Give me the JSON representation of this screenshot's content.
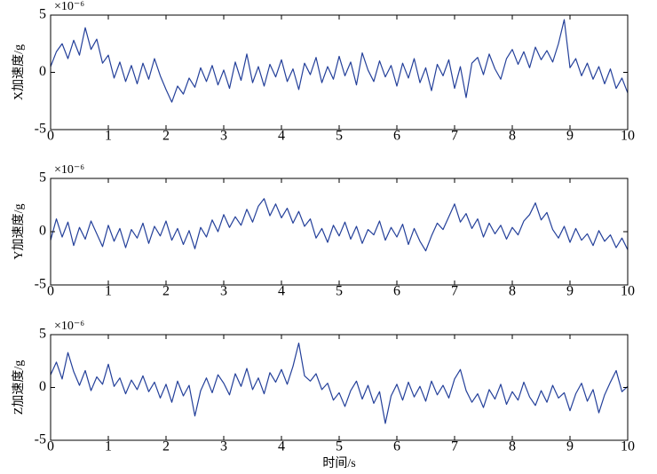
{
  "chart_data": [
    {
      "type": "line",
      "ylabel": "X加速度/g",
      "multiplier": "×10⁻⁶",
      "color": "#24409a",
      "x": [
        0,
        0.1,
        0.2,
        0.3,
        0.4,
        0.5,
        0.6,
        0.7,
        0.8,
        0.9,
        1,
        1.1,
        1.2,
        1.3,
        1.4,
        1.5,
        1.6,
        1.7,
        1.8,
        1.9,
        2,
        2.1,
        2.2,
        2.3,
        2.4,
        2.5,
        2.6,
        2.7,
        2.8,
        2.9,
        3,
        3.1,
        3.2,
        3.3,
        3.4,
        3.5,
        3.6,
        3.7,
        3.8,
        3.9,
        4,
        4.1,
        4.2,
        4.3,
        4.4,
        4.5,
        4.6,
        4.7,
        4.8,
        4.9,
        5,
        5.1,
        5.2,
        5.3,
        5.4,
        5.5,
        5.6,
        5.7,
        5.8,
        5.9,
        6,
        6.1,
        6.2,
        6.3,
        6.4,
        6.5,
        6.6,
        6.7,
        6.8,
        6.9,
        7,
        7.1,
        7.2,
        7.3,
        7.4,
        7.5,
        7.6,
        7.7,
        7.8,
        7.9,
        8,
        8.1,
        8.2,
        8.3,
        8.4,
        8.5,
        8.6,
        8.7,
        8.8,
        8.9,
        9,
        9.1,
        9.2,
        9.3,
        9.4,
        9.5,
        9.6,
        9.7,
        9.8,
        9.9,
        10
      ],
      "values": [
        0.5,
        1.8,
        2.5,
        1.2,
        2.8,
        1.5,
        3.9,
        2.0,
        2.9,
        0.8,
        1.5,
        -0.5,
        0.9,
        -0.8,
        0.6,
        -1.0,
        0.8,
        -0.6,
        1.2,
        -0.3,
        -1.5,
        -2.6,
        -1.2,
        -1.9,
        -0.5,
        -1.3,
        0.4,
        -0.8,
        0.6,
        -1.1,
        0.2,
        -1.4,
        0.9,
        -0.7,
        1.6,
        -0.9,
        0.5,
        -1.2,
        0.7,
        -0.4,
        1.1,
        -0.8,
        0.3,
        -1.5,
        0.8,
        -0.2,
        1.3,
        -0.9,
        0.5,
        -0.6,
        1.4,
        -0.3,
        0.9,
        -1.1,
        1.7,
        0.2,
        -0.8,
        1.0,
        -0.4,
        0.6,
        -1.2,
        0.8,
        -0.5,
        1.2,
        -0.9,
        0.4,
        -1.6,
        0.7,
        -0.3,
        1.1,
        -1.4,
        0.5,
        -2.2,
        0.8,
        1.3,
        -0.2,
        1.6,
        0.3,
        -0.6,
        1.2,
        2.0,
        0.7,
        1.8,
        0.4,
        2.2,
        1.1,
        1.9,
        0.9,
        2.5,
        4.6,
        0.4,
        1.2,
        -0.3,
        0.8,
        -0.6,
        0.5,
        -1.0,
        0.3,
        -1.4,
        -0.5,
        -1.8
      ],
      "xlim": [
        0,
        10
      ],
      "xticks": [
        0,
        1,
        2,
        3,
        4,
        5,
        6,
        7,
        8,
        9,
        10
      ],
      "ylim": [
        -5,
        5
      ],
      "yticks": [
        -5,
        0,
        5
      ]
    },
    {
      "type": "line",
      "ylabel": "Y加速度/g",
      "multiplier": "×10⁻⁶",
      "color": "#24409a",
      "x": [
        0,
        0.1,
        0.2,
        0.3,
        0.4,
        0.5,
        0.6,
        0.7,
        0.8,
        0.9,
        1,
        1.1,
        1.2,
        1.3,
        1.4,
        1.5,
        1.6,
        1.7,
        1.8,
        1.9,
        2,
        2.1,
        2.2,
        2.3,
        2.4,
        2.5,
        2.6,
        2.7,
        2.8,
        2.9,
        3,
        3.1,
        3.2,
        3.3,
        3.4,
        3.5,
        3.6,
        3.7,
        3.8,
        3.9,
        4,
        4.1,
        4.2,
        4.3,
        4.4,
        4.5,
        4.6,
        4.7,
        4.8,
        4.9,
        5,
        5.1,
        5.2,
        5.3,
        5.4,
        5.5,
        5.6,
        5.7,
        5.8,
        5.9,
        6,
        6.1,
        6.2,
        6.3,
        6.4,
        6.5,
        6.6,
        6.7,
        6.8,
        6.9,
        7,
        7.1,
        7.2,
        7.3,
        7.4,
        7.5,
        7.6,
        7.7,
        7.8,
        7.9,
        8,
        8.1,
        8.2,
        8.3,
        8.4,
        8.5,
        8.6,
        8.7,
        8.8,
        8.9,
        9,
        9.1,
        9.2,
        9.3,
        9.4,
        9.5,
        9.6,
        9.7,
        9.8,
        9.9,
        10
      ],
      "values": [
        -0.8,
        1.2,
        -0.5,
        0.9,
        -1.3,
        0.4,
        -0.7,
        1.0,
        -0.2,
        -1.4,
        0.6,
        -0.9,
        0.3,
        -1.5,
        0.2,
        -0.6,
        0.8,
        -1.1,
        0.5,
        -0.4,
        1.0,
        -0.8,
        0.3,
        -1.2,
        0.1,
        -1.6,
        0.4,
        -0.5,
        1.1,
        0.0,
        1.6,
        0.4,
        1.4,
        0.6,
        2.1,
        0.9,
        2.4,
        3.1,
        1.5,
        2.6,
        1.3,
        2.2,
        0.8,
        1.9,
        0.5,
        1.2,
        -0.6,
        0.3,
        -1.0,
        0.6,
        -0.4,
        0.9,
        -0.7,
        0.5,
        -1.1,
        0.2,
        -0.3,
        1.0,
        -0.8,
        0.4,
        -0.5,
        0.7,
        -1.2,
        0.3,
        -0.9,
        -1.8,
        -0.4,
        0.8,
        0.2,
        1.4,
        2.6,
        0.9,
        1.7,
        0.3,
        1.2,
        -0.5,
        0.8,
        -0.2,
        0.6,
        -0.7,
        0.4,
        -0.3,
        1.0,
        1.6,
        2.7,
        1.1,
        1.8,
        0.2,
        -0.6,
        0.5,
        -1.0,
        0.3,
        -0.8,
        -0.2,
        -1.3,
        0.1,
        -0.9,
        -0.3,
        -1.5,
        -0.6,
        -1.7
      ],
      "xlim": [
        0,
        10
      ],
      "xticks": [
        0,
        1,
        2,
        3,
        4,
        5,
        6,
        7,
        8,
        9,
        10
      ],
      "ylim": [
        -5,
        5
      ],
      "yticks": [
        -5,
        0,
        5
      ]
    },
    {
      "type": "line",
      "ylabel": "Z加速度/g",
      "multiplier": "×10⁻⁶",
      "xlabel": "时间/s",
      "color": "#24409a",
      "x": [
        0,
        0.1,
        0.2,
        0.3,
        0.4,
        0.5,
        0.6,
        0.7,
        0.8,
        0.9,
        1,
        1.1,
        1.2,
        1.3,
        1.4,
        1.5,
        1.6,
        1.7,
        1.8,
        1.9,
        2,
        2.1,
        2.2,
        2.3,
        2.4,
        2.5,
        2.6,
        2.7,
        2.8,
        2.9,
        3,
        3.1,
        3.2,
        3.3,
        3.4,
        3.5,
        3.6,
        3.7,
        3.8,
        3.9,
        4,
        4.1,
        4.2,
        4.3,
        4.4,
        4.5,
        4.6,
        4.7,
        4.8,
        4.9,
        5,
        5.1,
        5.2,
        5.3,
        5.4,
        5.5,
        5.6,
        5.7,
        5.8,
        5.9,
        6,
        6.1,
        6.2,
        6.3,
        6.4,
        6.5,
        6.6,
        6.7,
        6.8,
        6.9,
        7,
        7.1,
        7.2,
        7.3,
        7.4,
        7.5,
        7.6,
        7.7,
        7.8,
        7.9,
        8,
        8.1,
        8.2,
        8.3,
        8.4,
        8.5,
        8.6,
        8.7,
        8.8,
        8.9,
        9,
        9.1,
        9.2,
        9.3,
        9.4,
        9.5,
        9.6,
        9.7,
        9.8,
        9.9,
        10
      ],
      "values": [
        1.2,
        2.4,
        0.8,
        3.3,
        1.5,
        0.2,
        1.6,
        -0.3,
        1.0,
        0.3,
        2.2,
        0.1,
        0.9,
        -0.6,
        0.7,
        -0.2,
        1.1,
        -0.4,
        0.5,
        -1.0,
        0.3,
        -1.4,
        0.6,
        -0.8,
        0.2,
        -2.7,
        -0.3,
        0.9,
        -0.5,
        1.2,
        0.4,
        -0.7,
        1.3,
        0.1,
        1.8,
        -0.2,
        0.9,
        -0.6,
        1.4,
        0.5,
        1.7,
        0.3,
        2.0,
        4.2,
        1.1,
        0.6,
        1.3,
        -0.2,
        0.4,
        -1.2,
        -0.5,
        -1.8,
        -0.3,
        0.6,
        -1.1,
        0.2,
        -1.5,
        -0.4,
        -3.4,
        -0.8,
        0.3,
        -1.2,
        0.5,
        -0.9,
        0.1,
        -1.3,
        0.6,
        -0.7,
        0.2,
        -1.0,
        0.8,
        1.7,
        -0.3,
        -1.4,
        -0.6,
        -1.9,
        -0.2,
        -1.1,
        0.3,
        -1.6,
        -0.4,
        -1.2,
        0.5,
        -0.9,
        -1.7,
        -0.3,
        -1.4,
        0.2,
        -1.0,
        -0.5,
        -2.2,
        -0.6,
        0.4,
        -1.3,
        -0.2,
        -2.4,
        -0.7,
        0.5,
        1.6,
        -0.4,
        0.1
      ],
      "xlim": [
        0,
        10
      ],
      "xticks": [
        0,
        1,
        2,
        3,
        4,
        5,
        6,
        7,
        8,
        9,
        10
      ],
      "ylim": [
        -5,
        5
      ],
      "yticks": [
        -5,
        0,
        5
      ]
    }
  ]
}
